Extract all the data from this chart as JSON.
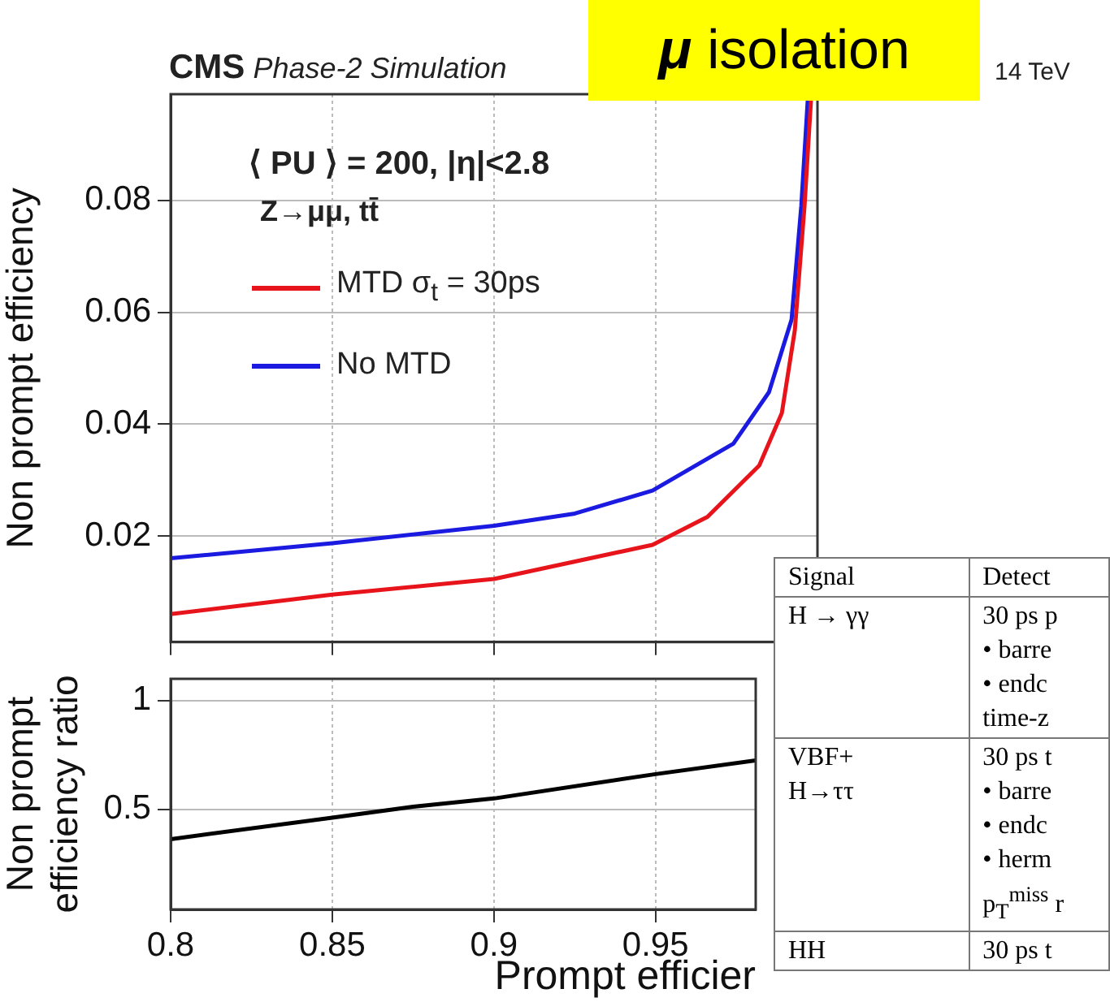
{
  "chart_data": [
    {
      "type": "line",
      "title": "μ isolation",
      "subtitle": "CMS Phase-2 Simulation",
      "ylabel": "Non prompt efficiency",
      "annotations": [
        "14 TeV",
        "⟨ PU ⟩ = 200,   |η|<2.8",
        "Z→μμ, tt̄"
      ],
      "series": [
        {
          "name": "MTD σ$_{t}$ = 30ps",
          "color": "#e8141c",
          "x": [
            0.8,
            0.85,
            0.9,
            0.949,
            0.966,
            0.982,
            0.989,
            0.993,
            0.996,
            0.998
          ],
          "values": [
            0.006,
            0.0095,
            0.0123,
            0.0184,
            0.0234,
            0.0326,
            0.042,
            0.0568,
            0.079,
            0.098
          ]
        },
        {
          "name": "No MTD",
          "color": "#1a1ae0",
          "x": [
            0.8,
            0.85,
            0.9,
            0.925,
            0.949,
            0.974,
            0.985,
            0.992,
            0.995,
            0.997
          ],
          "values": [
            0.016,
            0.0187,
            0.0218,
            0.024,
            0.0281,
            0.0365,
            0.0457,
            0.0587,
            0.079,
            0.098
          ]
        }
      ],
      "xlim": [
        0.8,
        1.0
      ],
      "xticks": [
        0.8,
        0.85,
        0.9,
        0.95
      ],
      "ylim": [
        0.001,
        0.099
      ],
      "yticks": [
        0.02,
        0.04,
        0.06,
        0.08
      ],
      "grid": true,
      "legend": "top left",
      "tick_labels": "y",
      "marker": "none",
      "line_style": "solid"
    },
    {
      "type": "line",
      "xlabel": "Prompt efficier",
      "ylabel": "Non prompt\nefficiency ratio",
      "series": [
        {
          "color": "#000000",
          "x": [
            0.8,
            0.85,
            0.875,
            0.9,
            0.95,
            0.981
          ],
          "values": [
            0.363,
            0.462,
            0.512,
            0.55,
            0.662,
            0.725
          ]
        }
      ],
      "xlim": [
        0.8,
        0.981
      ],
      "xticks": [
        0.8,
        0.85,
        0.9,
        0.95
      ],
      "ylim": [
        0.04,
        1.1
      ],
      "yticks": [
        0.5,
        1
      ],
      "grid": true,
      "marker": "none",
      "line_style": "solid"
    },
    {
      "type": "other",
      "annotations": [
        "Signal",
        "Detect",
        "H → γγ",
        "30 ps p\n• barre\n• endc\ntime-z",
        "VBF+\nH→ττ",
        "30 ps t\n• barre\n• endc\n• herm\np$_{T}$$^{miss}$ r",
        "HH",
        "30 ps t"
      ]
    }
  ]
}
